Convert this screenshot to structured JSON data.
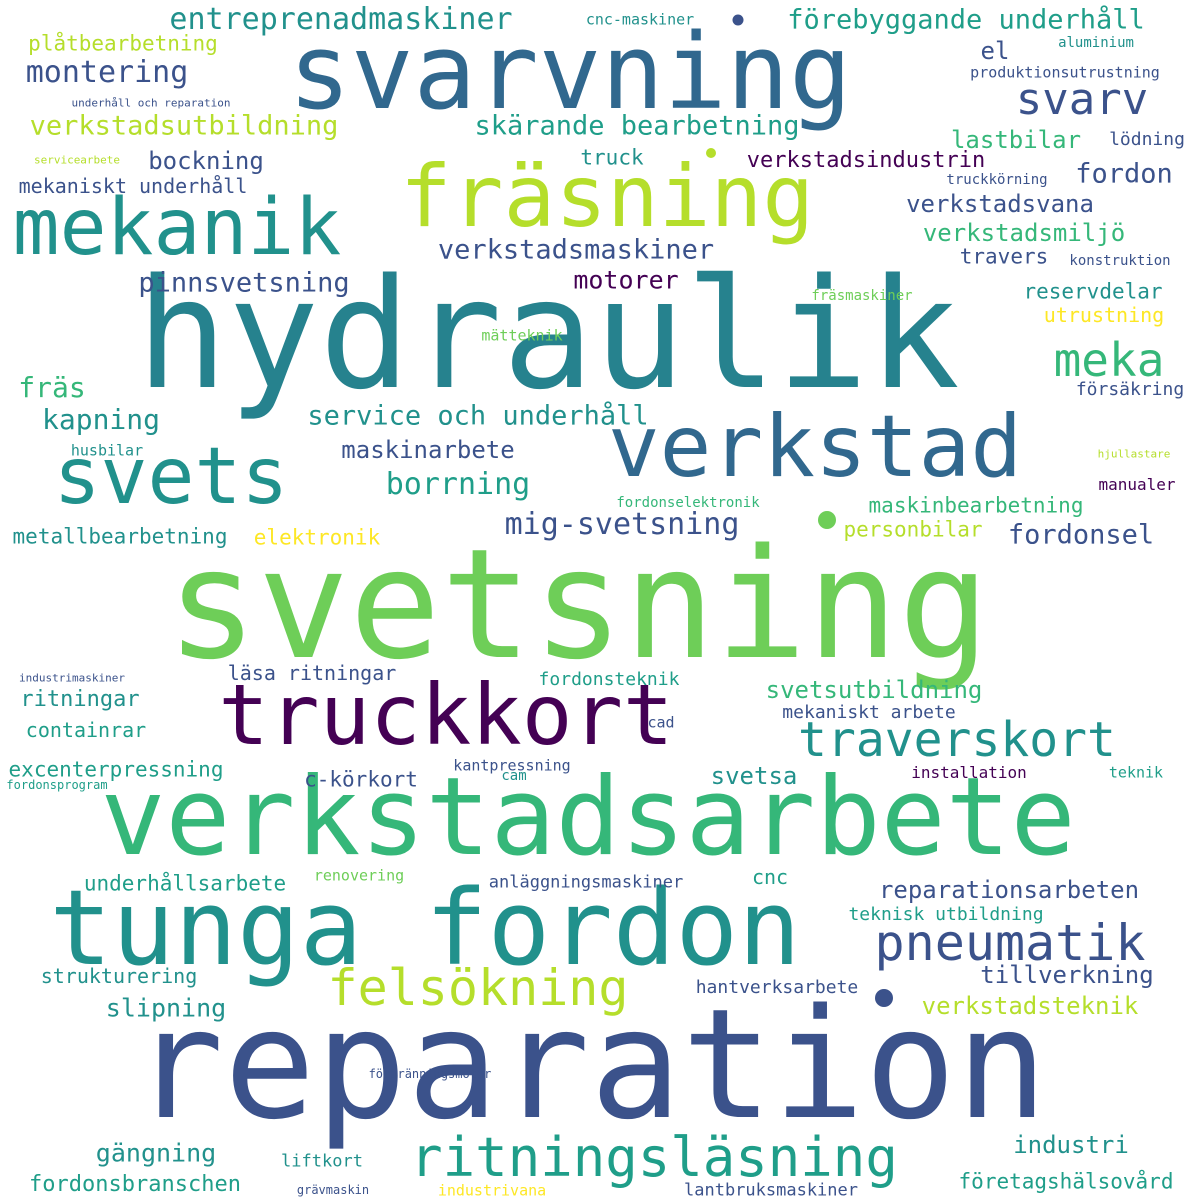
{
  "palette": {
    "purple": "#440154",
    "indigo": "#3b528b",
    "blue": "#31688e",
    "teal": "#26828e",
    "green": "#21918c",
    "seagreen": "#1f9e89",
    "emerald": "#35b779",
    "lime": "#6ece58",
    "yellowgreen": "#b5de2b",
    "yellow": "#fde725",
    "background": "#ffffff"
  },
  "words": [
    "svetsning",
    "reparation",
    "hydraulik",
    "verkstadsarbete",
    "svarvning",
    "tunga fordon",
    "fräsning",
    "verkstad",
    "truckkort",
    "mekanik",
    "svets",
    "ritningsläsning",
    "pneumatik",
    "felsökning",
    "traverskort",
    "meka",
    "svarv",
    "entreprenadmaskiner",
    "förebyggande underhåll",
    "montering",
    "skärande bearbetning",
    "verkstadsutbildning",
    "verkstadsmaskiner",
    "pinnsvetsning",
    "service och underhåll",
    "mig-svetsning",
    "borrning",
    "maskinarbete",
    "kapning",
    "fräs",
    "bockning",
    "verkstadsindustrin",
    "verkstadsvana",
    "verkstadsmiljö",
    "motorer",
    "reservdelar",
    "lastbilar",
    "fordon",
    "plåtbearbetning",
    "maskinbearbetning",
    "personbilar",
    "fordonsel",
    "elektronik",
    "metallbearbetning",
    "truck",
    "mekaniskt underhåll",
    "el",
    "travers",
    "utrustning",
    "försäkring",
    "svetsutbildning",
    "läsa ritningar",
    "ritningar",
    "containrar",
    "excenterpressning",
    "c-körkort",
    "svetsa",
    "mekaniskt arbete",
    "fordonsteknik",
    "reparationsarbeten",
    "underhållsarbete",
    "tillverkning",
    "verkstadsteknik",
    "strukturering",
    "slipning",
    "hantverksarbete",
    "teknisk utbildning",
    "cnc",
    "anläggningsmaskiner",
    "gängning",
    "fordonsbranschen",
    "industri",
    "företagshälsovård",
    "liftkort",
    "lantbruksmaskiner",
    "industrivana",
    "förbränningsmotor",
    "grävmaskin",
    "renovering",
    "installation",
    "teknik",
    "kantpressning",
    "cam",
    "cad",
    "industrimaskiner",
    "fordonsprogram",
    "cnc-maskiner",
    "aluminium",
    "produktionsutrustning",
    "lödning",
    "truckkörning",
    "konstruktion",
    "underhåll och reparation",
    "servicearbete",
    "fräsmaskiner",
    "mätteknik",
    "husbilar",
    "fordonselektronik",
    "hjullastare",
    "manualer"
  ]
}
